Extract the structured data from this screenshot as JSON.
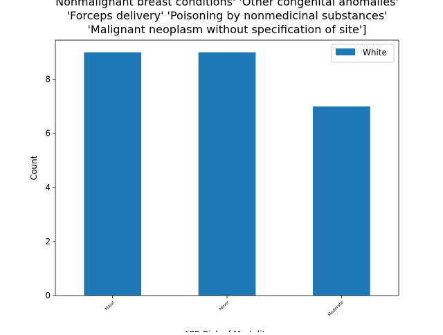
{
  "chart_data": {
    "type": "bar",
    "title": [
      "Nonmalignant breast conditions' 'Other congenital anomalies'",
      "'Forceps delivery' 'Poisoning by nonmedicinal substances'",
      "'Malignant neoplasm without specification of site']"
    ],
    "x_label": "APR Risk of Mortality",
    "y_label": "Count",
    "categories": [
      "Major",
      "Minor",
      "Moderate"
    ],
    "series": [
      {
        "name": "White",
        "color": "#1f77b4",
        "values": [
          9,
          9,
          7
        ]
      }
    ],
    "ylim": [
      0,
      9.45
    ],
    "yticks": [
      0,
      2,
      4,
      6,
      8
    ],
    "legend": "upper right"
  }
}
